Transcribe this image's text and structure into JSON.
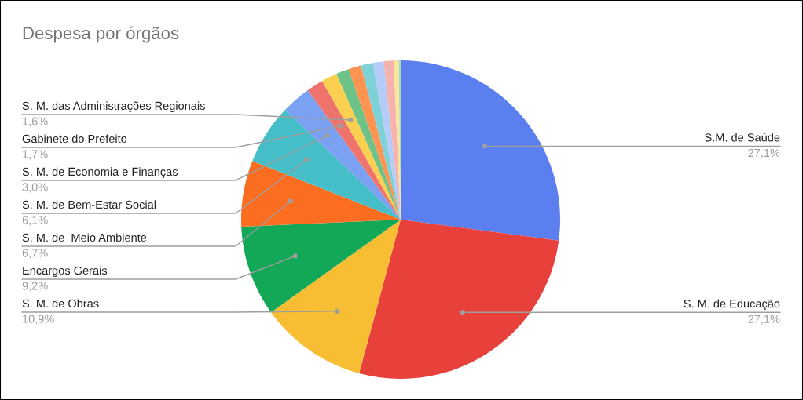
{
  "chart_data": {
    "type": "pie",
    "title": "Despesa por órgãos",
    "categories": [
      "S.M. de Saúde",
      "S. M. de Educação",
      "S. M. de Obras",
      "Encargos Gerais",
      "S. M. de  Meio Ambiente",
      "S. M. de Bem-Estar Social",
      "S. M. de Economia e Finanças",
      "Gabinete do Prefeito",
      "S. M. das Administrações Regionais",
      null,
      null,
      null,
      null,
      null,
      null,
      null
    ],
    "values": [
      27.1,
      27.1,
      10.9,
      9.2,
      6.7,
      6.1,
      3.0,
      1.7,
      1.6,
      1.3,
      1.3,
      1.2,
      1.1,
      1.0,
      0.5,
      0.2
    ],
    "value_labels": [
      "27,1%",
      "27,1%",
      "10,9%",
      "9,2%",
      "6,7%",
      "6,1%",
      "3,0%",
      "1,7%",
      "1,6%",
      null,
      null,
      null,
      null,
      null,
      null,
      null
    ],
    "colors": [
      "#5b7fee",
      "#e8403b",
      "#f7bd33",
      "#13a858",
      "#fb6d21",
      "#45bec7",
      "#7ba2f2",
      "#ee736c",
      "#fbcf4f",
      "#6cc287",
      "#fd9452",
      "#7ed2d7",
      "#b5cbf8",
      "#f6b2ad",
      "#fde49b",
      "#a8dcb3"
    ]
  }
}
